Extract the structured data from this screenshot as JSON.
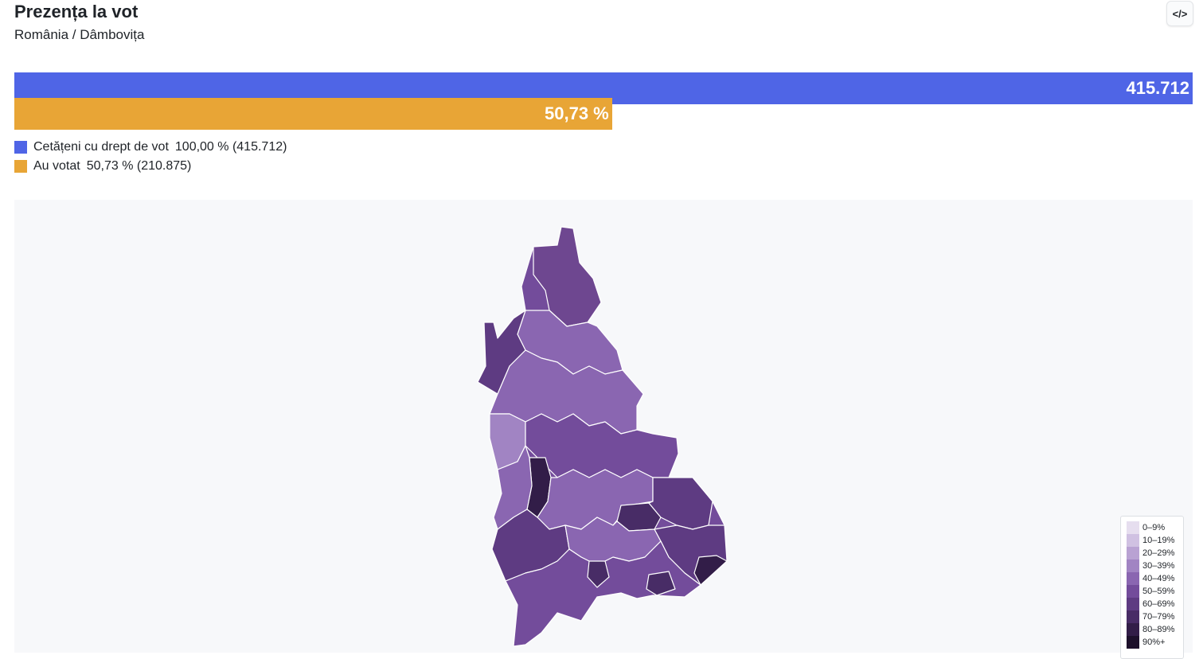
{
  "header": {
    "title": "Prezența la vot",
    "subtitle": "România / Dâmbovița",
    "embed_button": "</>"
  },
  "turnout": {
    "bars": [
      {
        "label": "415.712",
        "value": 415712,
        "color": "#4f65e6"
      },
      {
        "label": "50,73 %",
        "value": 210875,
        "color": "#e8a536"
      }
    ],
    "legend": [
      {
        "name": "Cetățeni cu drept de vot",
        "text": "100,00 % (415.712)",
        "color": "#4f65e6"
      },
      {
        "name": "Au votat",
        "text": "50,73 % (210.875)",
        "color": "#e8a536"
      }
    ]
  },
  "map": {
    "legend": [
      {
        "label": "0–9%",
        "color": "#e6deef"
      },
      {
        "label": "10–19%",
        "color": "#d0c1e2"
      },
      {
        "label": "20–29%",
        "color": "#b9a2d3"
      },
      {
        "label": "30–39%",
        "color": "#a184c3"
      },
      {
        "label": "40–49%",
        "color": "#8a66b1"
      },
      {
        "label": "50–59%",
        "color": "#734c9b"
      },
      {
        "label": "60–69%",
        "color": "#5e3b82"
      },
      {
        "label": "70–79%",
        "color": "#482c66"
      },
      {
        "label": "80–89%",
        "color": "#321d48"
      },
      {
        "label": "90%+",
        "color": "#1d102b"
      }
    ]
  }
}
